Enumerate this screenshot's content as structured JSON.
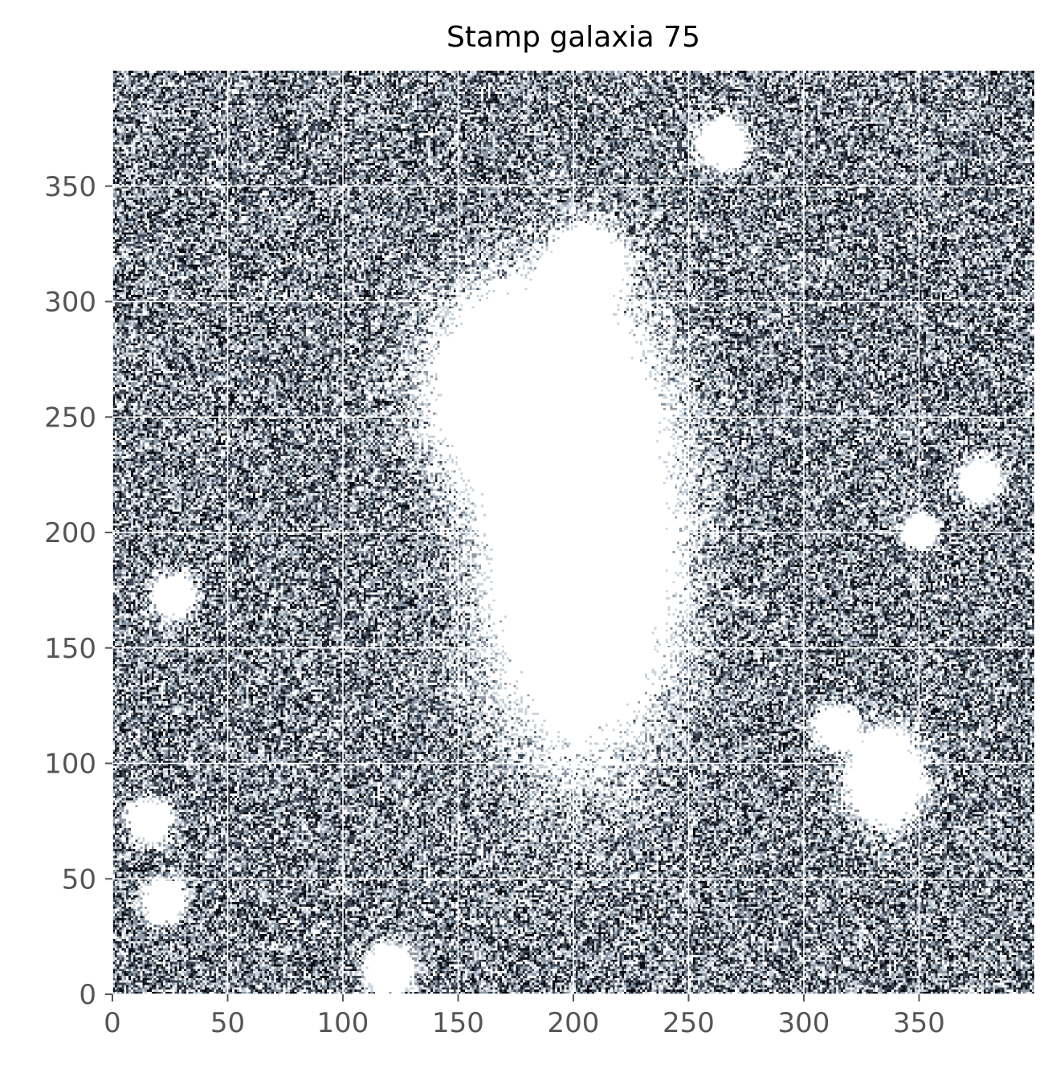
{
  "chart_data": {
    "type": "heatmap",
    "title": "Stamp galaxia 75",
    "xlabel": "",
    "ylabel": "",
    "xlim": [
      0,
      400
    ],
    "ylim": [
      0,
      400
    ],
    "x_ticks": [
      0,
      50,
      100,
      150,
      200,
      250,
      300,
      350
    ],
    "y_ticks": [
      0,
      50,
      100,
      150,
      200,
      250,
      300,
      350
    ],
    "x_tick_labels": [
      "0",
      "50",
      "100",
      "150",
      "200",
      "250",
      "300",
      "350"
    ],
    "y_tick_labels": [
      "0",
      "50",
      "100",
      "150",
      "200",
      "250",
      "300",
      "350"
    ],
    "grid": true,
    "colormap": "bone (inverted)",
    "background": "pixel noise",
    "sources": [
      {
        "x": 177,
        "y": 262
      },
      {
        "x": 203,
        "y": 198
      },
      {
        "x": 205,
        "y": 315
      },
      {
        "x": 335,
        "y": 93
      },
      {
        "x": 16,
        "y": 75
      },
      {
        "x": 22,
        "y": 40
      },
      {
        "x": 26,
        "y": 172
      },
      {
        "x": 264,
        "y": 368
      },
      {
        "x": 376,
        "y": 222
      },
      {
        "x": 314,
        "y": 115
      },
      {
        "x": 120,
        "y": 10
      },
      {
        "x": 350,
        "y": 200
      }
    ],
    "colors": {
      "ink": "#0a0e14",
      "dark": "#3c4652",
      "mid": "#8d98a4",
      "light": "#c8d2da",
      "grid": "#ffffff",
      "tick_label": "#555555"
    }
  }
}
